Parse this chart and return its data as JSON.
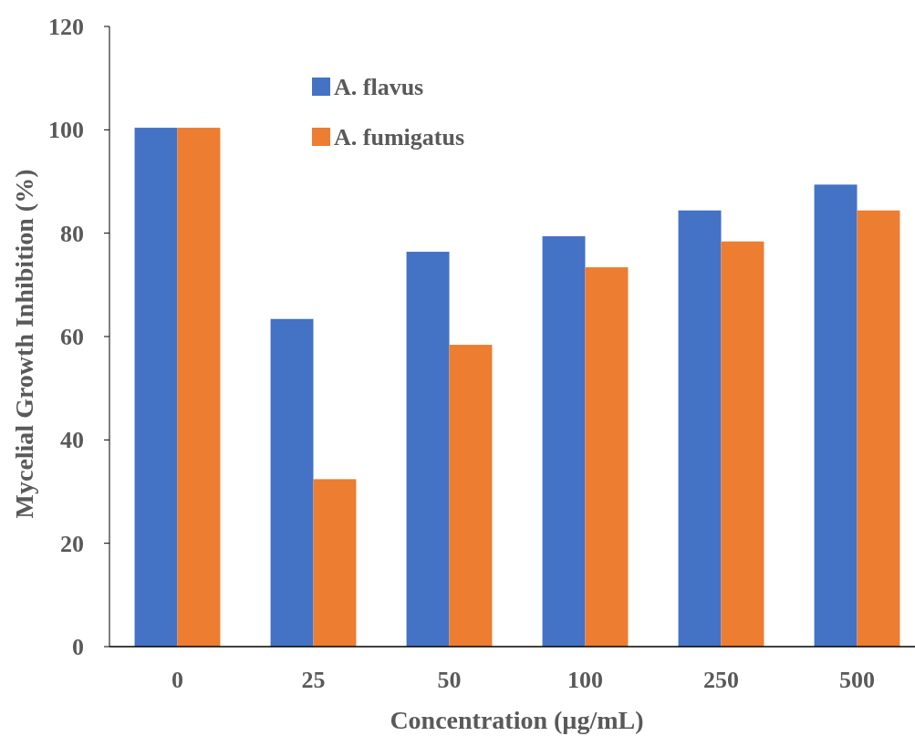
{
  "chart_data": {
    "type": "bar",
    "xlabel": "Concentration (µg/mL)",
    "ylabel": "Mycelial Growth Inhibition (%)",
    "categories": [
      "0",
      "25",
      "50",
      "100",
      "250",
      "500"
    ],
    "series": [
      {
        "name": "A. flavus",
        "color": "#4472c4",
        "values": [
          100.4,
          63.4,
          76.4,
          79.4,
          84.4,
          89.4
        ]
      },
      {
        "name": "A. fumigatus",
        "color": "#ed7d31",
        "values": [
          100.4,
          32.4,
          58.4,
          73.4,
          78.4,
          84.4
        ]
      }
    ],
    "ylim": [
      0,
      120
    ],
    "yticks": [
      0,
      20,
      40,
      60,
      80,
      100,
      120
    ],
    "grid": false,
    "legend": "top left"
  }
}
